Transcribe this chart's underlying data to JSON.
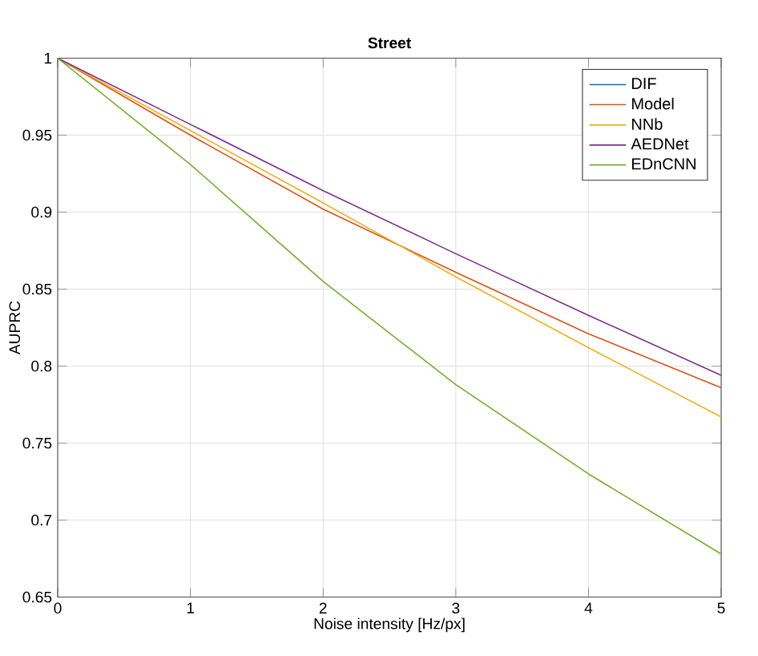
{
  "chart_data": {
    "type": "line",
    "title": "Street",
    "xlabel": "Noise intensity [Hz/px]",
    "ylabel": "AUPRC",
    "x": [
      0,
      1,
      2,
      3,
      4,
      5
    ],
    "series": [
      {
        "name": "DIF",
        "color": "#0072bd",
        "values": [
          null,
          null,
          null,
          null,
          null,
          null
        ]
      },
      {
        "name": "Model",
        "color": "#d95319",
        "values": [
          1,
          0.95,
          0.902,
          0.861,
          0.821,
          0.786
        ]
      },
      {
        "name": "NNb",
        "color": "#edb120",
        "values": [
          1,
          0.953,
          0.906,
          0.858,
          0.812,
          0.767
        ]
      },
      {
        "name": "AEDNet",
        "color": "#7e2f8e",
        "values": [
          1,
          0.957,
          0.914,
          0.873,
          0.833,
          0.794
        ]
      },
      {
        "name": "EDnCNN",
        "color": "#77ac30",
        "values": [
          1,
          0.931,
          0.855,
          0.788,
          0.73,
          0.678
        ]
      }
    ],
    "xlim": [
      0,
      5
    ],
    "ylim": [
      0.65,
      1
    ],
    "xticks": [
      0,
      1,
      2,
      3,
      4,
      5
    ],
    "yticks": [
      0.65,
      0.7,
      0.75,
      0.8,
      0.85,
      0.9,
      0.95,
      1
    ],
    "grid": true,
    "legend": "top right",
    "marker": "none",
    "line_style": "solid"
  }
}
